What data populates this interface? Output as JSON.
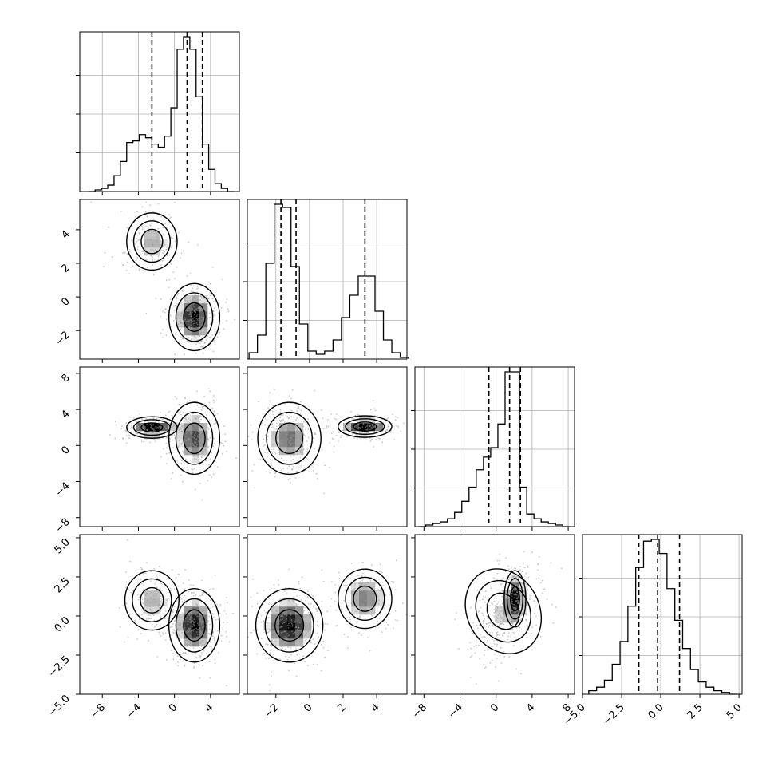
{
  "chart_data": {
    "type": "corner",
    "grid": true,
    "n_params": 4,
    "params": [
      {
        "ticks": [
          -8,
          -4,
          0,
          4
        ],
        "labels": [
          "−8",
          "−4",
          "0",
          "4"
        ],
        "lim": [
          -10.5,
          7.2
        ]
      },
      {
        "ticks": [
          -2,
          0,
          2,
          4
        ],
        "labels": [
          "−2",
          "0",
          "2",
          "4"
        ],
        "lim": [
          -3.7,
          5.8
        ]
      },
      {
        "ticks": [
          -8,
          -4,
          0,
          4,
          8
        ],
        "labels": [
          "−8",
          "−4",
          "0",
          "4",
          "8"
        ],
        "lim": [
          -9.0,
          8.7
        ]
      },
      {
        "ticks": [
          -5.0,
          -2.5,
          0.0,
          2.5,
          5.0
        ],
        "labels": [
          "−5.0",
          "−2.5",
          "0.0",
          "2.5",
          "5.0"
        ],
        "lim": [
          -5.0,
          5.2
        ]
      }
    ],
    "histograms": [
      {
        "param": 0,
        "bin_edges": [
          -9.5,
          -8.8,
          -8.1,
          -7.4,
          -6.7,
          -6.0,
          -5.3,
          -4.6,
          -3.9,
          -3.2,
          -2.5,
          -1.8,
          -1.1,
          -0.4,
          0.3,
          1.0,
          1.7,
          2.4,
          3.1,
          3.8,
          4.5,
          5.2,
          5.9,
          6.6
        ],
        "counts": [
          0.0,
          0.01,
          0.02,
          0.04,
          0.1,
          0.19,
          0.31,
          0.32,
          0.36,
          0.34,
          0.3,
          0.28,
          0.35,
          0.53,
          0.9,
          0.98,
          0.9,
          0.6,
          0.3,
          0.14,
          0.05,
          0.02,
          0.0
        ],
        "quantiles": [
          -2.5,
          1.4,
          3.1
        ]
      },
      {
        "param": 1,
        "bin_edges": [
          -3.6,
          -3.1,
          -2.6,
          -2.1,
          -1.6,
          -1.1,
          -0.6,
          -0.1,
          0.4,
          0.9,
          1.4,
          1.9,
          2.4,
          2.9,
          3.4,
          3.9,
          4.4,
          4.9,
          5.4,
          5.9
        ],
        "counts": [
          0.04,
          0.15,
          0.6,
          0.97,
          0.95,
          0.58,
          0.22,
          0.05,
          0.03,
          0.05,
          0.12,
          0.26,
          0.4,
          0.52,
          0.52,
          0.3,
          0.12,
          0.04,
          0.01
        ],
        "quantiles": [
          -1.7,
          -0.8,
          3.3
        ]
      },
      {
        "param": 2,
        "bin_edges": [
          -8.6,
          -7.8,
          -7.0,
          -6.2,
          -5.4,
          -4.6,
          -3.8,
          -3.0,
          -2.2,
          -1.4,
          -0.6,
          0.2,
          1.0,
          1.8,
          2.6,
          3.4,
          4.2,
          5.0,
          5.8,
          6.6,
          7.4,
          8.2
        ],
        "counts": [
          0.0,
          0.01,
          0.02,
          0.03,
          0.05,
          0.09,
          0.16,
          0.25,
          0.36,
          0.44,
          0.5,
          0.65,
          0.98,
          0.98,
          0.25,
          0.08,
          0.05,
          0.03,
          0.02,
          0.01,
          0.0
        ],
        "quantiles": [
          -0.8,
          1.5,
          2.7
        ]
      },
      {
        "param": 3,
        "bin_edges": [
          -4.6,
          -4.1,
          -3.6,
          -3.1,
          -2.6,
          -2.1,
          -1.6,
          -1.1,
          -0.6,
          -0.1,
          0.4,
          0.9,
          1.4,
          1.9,
          2.4,
          2.9,
          3.4,
          3.9,
          4.4,
          4.9
        ],
        "counts": [
          0.02,
          0.04,
          0.08,
          0.17,
          0.3,
          0.5,
          0.72,
          0.87,
          0.88,
          0.8,
          0.6,
          0.42,
          0.26,
          0.14,
          0.07,
          0.04,
          0.02,
          0.01,
          0.0
        ],
        "quantiles": [
          -1.4,
          -0.2,
          1.2
        ]
      }
    ],
    "scatter_panels": [
      {
        "x": 0,
        "y": 1,
        "clusters": [
          {
            "mx": -2.5,
            "my": 3.3,
            "sx": 1.4,
            "sy": 0.85,
            "rho": 0.0,
            "weight": 0.35
          },
          {
            "mx": 2.2,
            "my": -1.2,
            "sx": 1.2,
            "sy": 0.85,
            "rho": 0.0,
            "weight": 0.65
          }
        ]
      },
      {
        "x": 0,
        "y": 2,
        "clusters": [
          {
            "mx": -2.5,
            "my": 2.0,
            "sx": 1.4,
            "sy": 0.6,
            "rho": 0.0,
            "weight": 0.35
          },
          {
            "mx": 2.2,
            "my": 0.8,
            "sx": 1.2,
            "sy": 1.7,
            "rho": 0.0,
            "weight": 0.65
          }
        ]
      },
      {
        "x": 1,
        "y": 2,
        "clusters": [
          {
            "mx": -1.2,
            "my": 0.8,
            "sx": 0.8,
            "sy": 1.7,
            "rho": 0.0,
            "weight": 0.65
          },
          {
            "mx": 3.3,
            "my": 2.1,
            "sx": 0.8,
            "sy": 0.6,
            "rho": 0.0,
            "weight": 0.35
          }
        ]
      },
      {
        "x": 0,
        "y": 3,
        "clusters": [
          {
            "mx": -2.5,
            "my": 1.0,
            "sx": 1.5,
            "sy": 0.95,
            "rho": 0.0,
            "weight": 0.35
          },
          {
            "mx": 2.2,
            "my": -0.6,
            "sx": 1.2,
            "sy": 1.0,
            "rho": 0.0,
            "weight": 0.65
          }
        ]
      },
      {
        "x": 1,
        "y": 3,
        "clusters": [
          {
            "mx": -1.2,
            "my": -0.6,
            "sx": 0.85,
            "sy": 1.0,
            "rho": 0.0,
            "weight": 0.65
          },
          {
            "mx": 3.3,
            "my": 1.1,
            "sx": 0.8,
            "sy": 0.95,
            "rho": 0.0,
            "weight": 0.35
          }
        ]
      },
      {
        "x": 2,
        "y": 3,
        "clusters": [
          {
            "mx": 0.8,
            "my": 0.3,
            "sx": 1.7,
            "sy": 1.2,
            "rho": 0.5,
            "weight": 0.65
          },
          {
            "mx": 2.1,
            "my": 1.1,
            "sx": 0.6,
            "sy": 0.9,
            "rho": 0.0,
            "weight": 0.35
          }
        ]
      }
    ],
    "contour_levels": [
      0.39,
      0.86,
      0.99
    ]
  }
}
